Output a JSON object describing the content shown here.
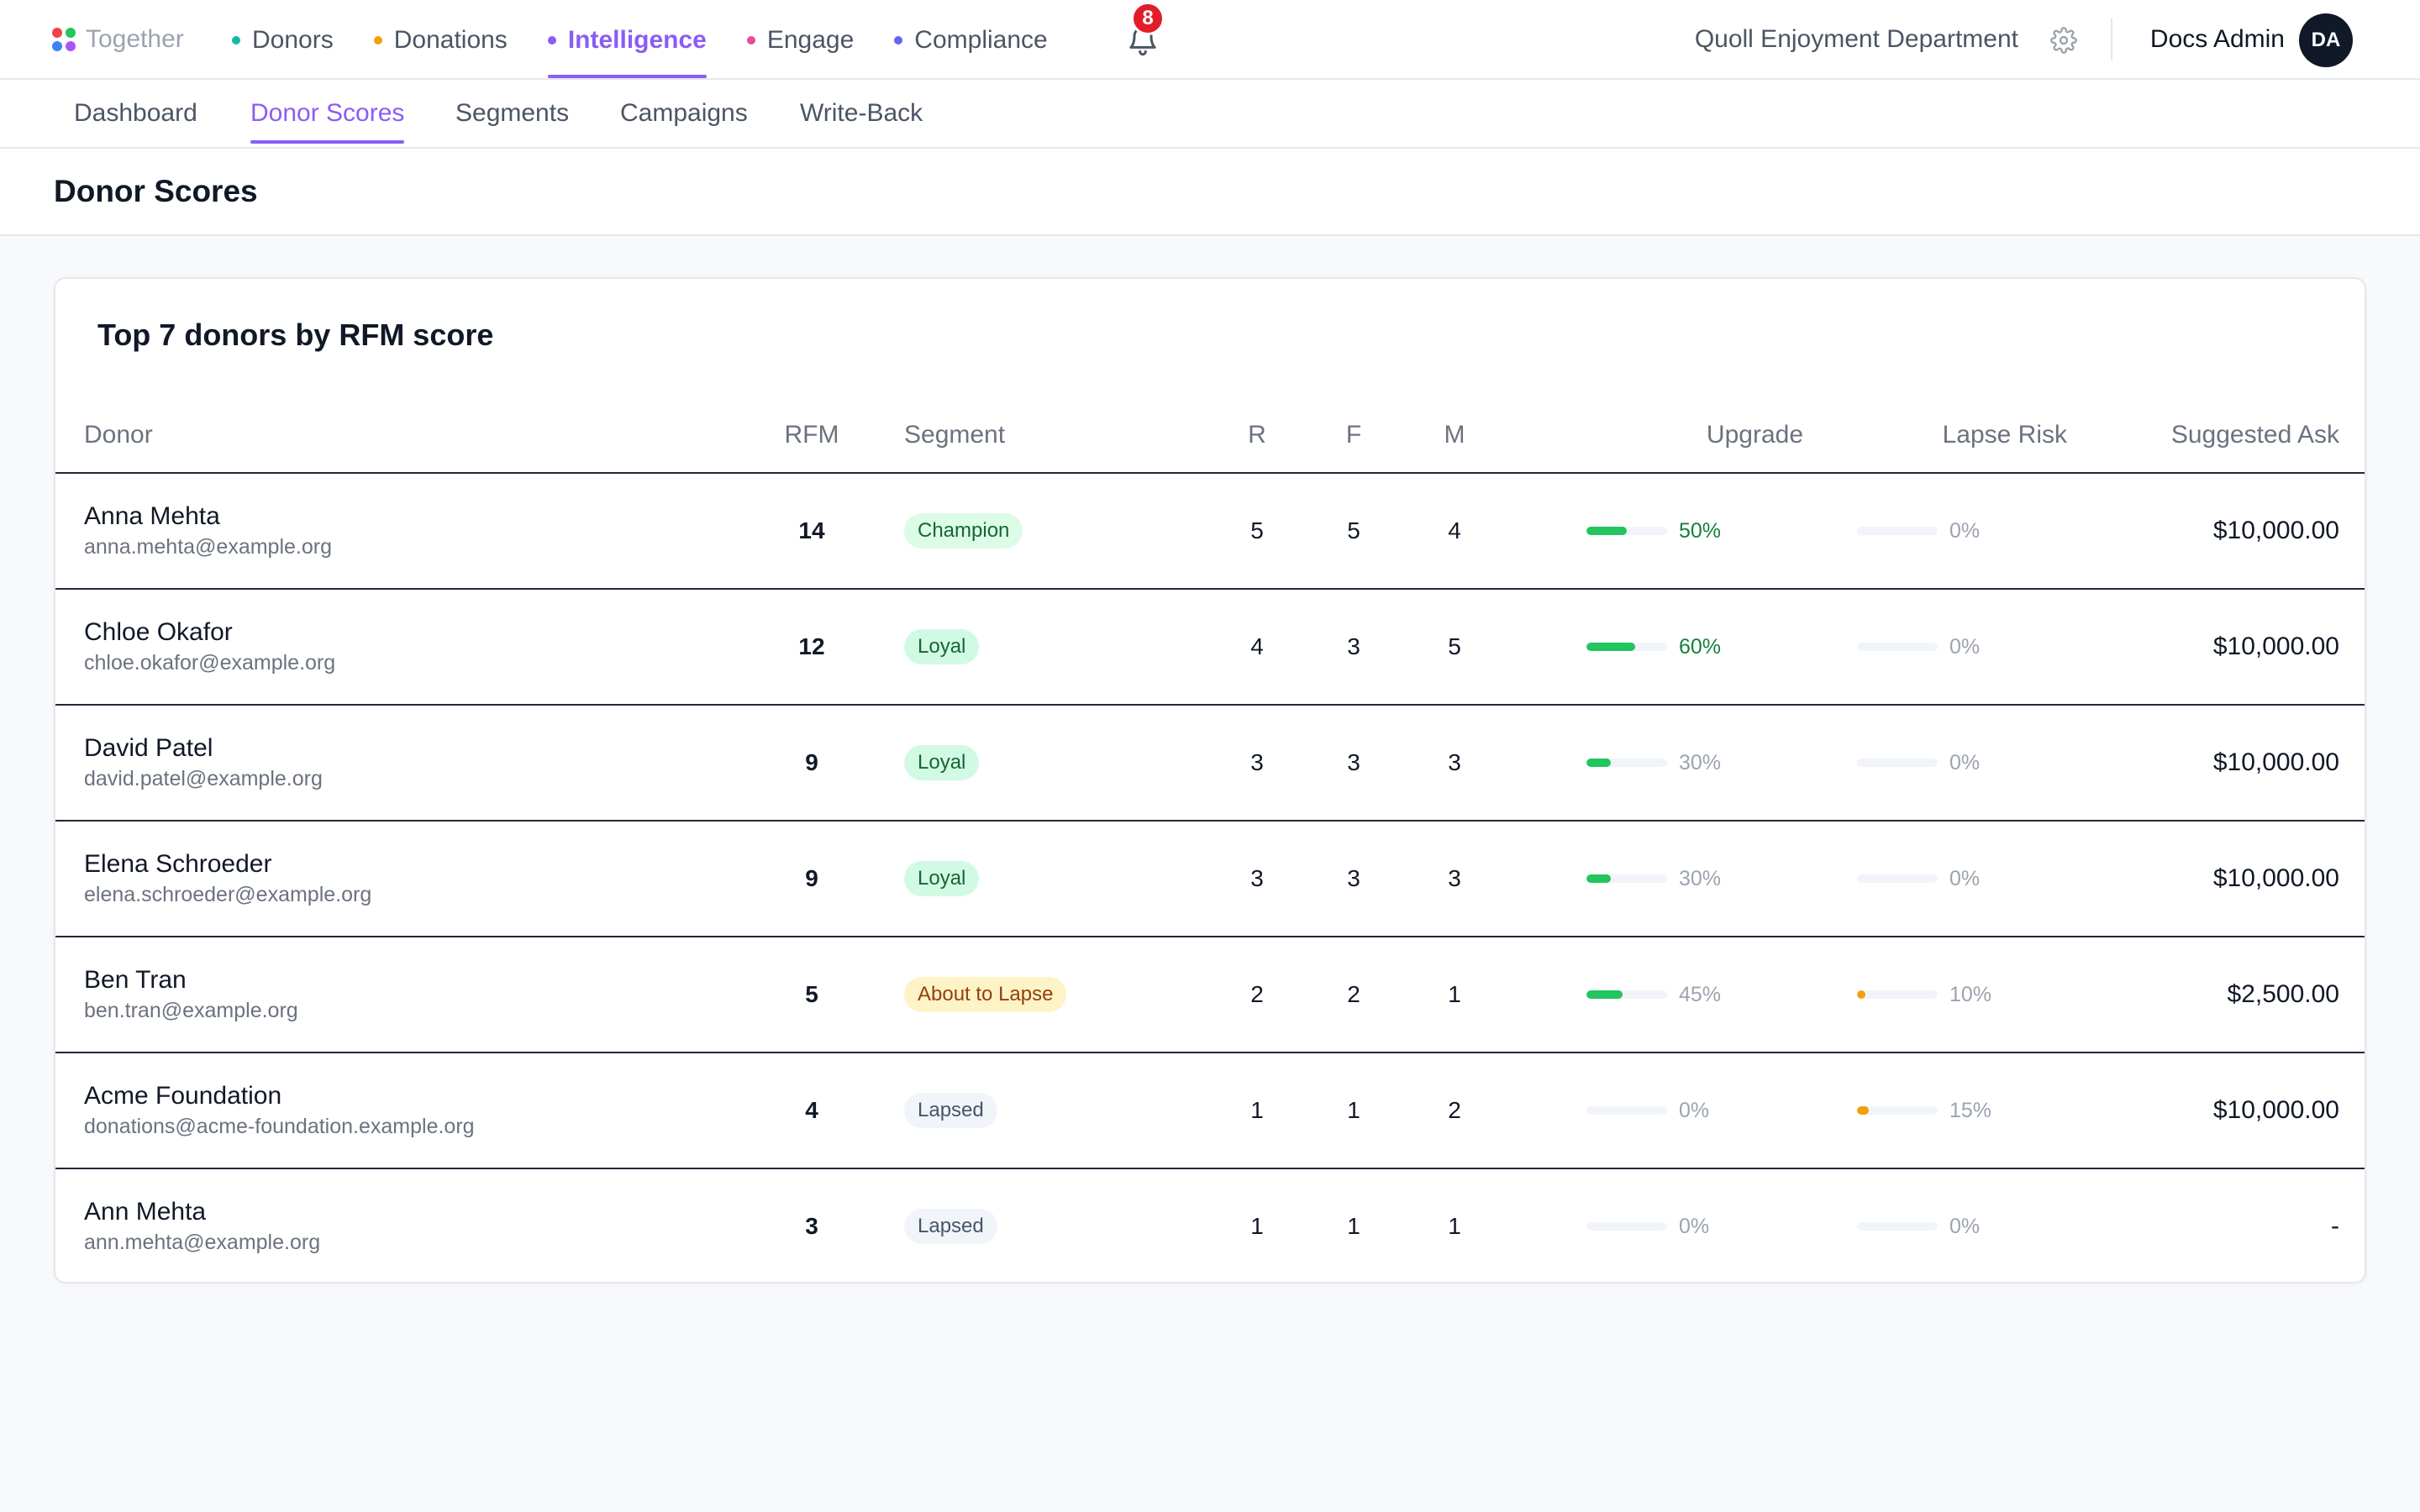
{
  "app": {
    "name": "Together",
    "logo_colors": [
      "#ef4444",
      "#22c55e",
      "#3b82f6",
      "#a855f7"
    ]
  },
  "main_nav": [
    {
      "label": "Donors",
      "dot_color": "#14b8a6",
      "active": false
    },
    {
      "label": "Donations",
      "dot_color": "#f59e0b",
      "active": false
    },
    {
      "label": "Intelligence",
      "dot_color": "#8b5cf6",
      "active": true
    },
    {
      "label": "Engage",
      "dot_color": "#ec4899",
      "active": false
    },
    {
      "label": "Compliance",
      "dot_color": "#6366f1",
      "active": false
    }
  ],
  "notifications": {
    "icon": "bell-icon",
    "count": "8"
  },
  "org_name": "Quoll Enjoyment Department",
  "settings_icon": "gear-icon",
  "user": {
    "name": "Docs Admin",
    "initials": "DA"
  },
  "sub_nav": [
    {
      "label": "Dashboard",
      "active": false
    },
    {
      "label": "Donor Scores",
      "active": true
    },
    {
      "label": "Segments",
      "active": false
    },
    {
      "label": "Campaigns",
      "active": false
    },
    {
      "label": "Write-Back",
      "active": false
    }
  ],
  "page_title": "Donor Scores",
  "card_title": "Top 7 donors by RFM score",
  "table": {
    "columns": {
      "donor": "Donor",
      "rfm": "RFM",
      "segment": "Segment",
      "r": "R",
      "f": "F",
      "m": "M",
      "upgrade": "Upgrade",
      "lapse_risk": "Lapse Risk",
      "suggested_ask": "Suggested Ask"
    },
    "rows": [
      {
        "name": "Anna Mehta",
        "email": "anna.mehta@example.org",
        "rfm": "14",
        "segment": "Champion",
        "segment_style": "champion",
        "r": "5",
        "f": "5",
        "m": "4",
        "upgrade": 50,
        "upgrade_label": "50%",
        "lapse": 0,
        "lapse_label": "0%",
        "ask": "$10,000.00"
      },
      {
        "name": "Chloe Okafor",
        "email": "chloe.okafor@example.org",
        "rfm": "12",
        "segment": "Loyal",
        "segment_style": "loyal",
        "r": "4",
        "f": "3",
        "m": "5",
        "upgrade": 60,
        "upgrade_label": "60%",
        "lapse": 0,
        "lapse_label": "0%",
        "ask": "$10,000.00"
      },
      {
        "name": "David Patel",
        "email": "david.patel@example.org",
        "rfm": "9",
        "segment": "Loyal",
        "segment_style": "loyal",
        "r": "3",
        "f": "3",
        "m": "3",
        "upgrade": 30,
        "upgrade_label": "30%",
        "lapse": 0,
        "lapse_label": "0%",
        "ask": "$10,000.00"
      },
      {
        "name": "Elena Schroeder",
        "email": "elena.schroeder@example.org",
        "rfm": "9",
        "segment": "Loyal",
        "segment_style": "loyal",
        "r": "3",
        "f": "3",
        "m": "3",
        "upgrade": 30,
        "upgrade_label": "30%",
        "lapse": 0,
        "lapse_label": "0%",
        "ask": "$10,000.00"
      },
      {
        "name": "Ben Tran",
        "email": "ben.tran@example.org",
        "rfm": "5",
        "segment": "About to Lapse",
        "segment_style": "warn",
        "r": "2",
        "f": "2",
        "m": "1",
        "upgrade": 45,
        "upgrade_label": "45%",
        "lapse": 10,
        "lapse_label": "10%",
        "ask": "$2,500.00"
      },
      {
        "name": "Acme Foundation",
        "email": "donations@acme-foundation.example.org",
        "rfm": "4",
        "segment": "Lapsed",
        "segment_style": "lapsed",
        "r": "1",
        "f": "1",
        "m": "2",
        "upgrade": 0,
        "upgrade_label": "0%",
        "lapse": 15,
        "lapse_label": "15%",
        "ask": "$10,000.00"
      },
      {
        "name": "Ann Mehta",
        "email": "ann.mehta@example.org",
        "rfm": "3",
        "segment": "Lapsed",
        "segment_style": "lapsed",
        "r": "1",
        "f": "1",
        "m": "1",
        "upgrade": 0,
        "upgrade_label": "0%",
        "lapse": 0,
        "lapse_label": "0%",
        "ask": "-"
      }
    ]
  },
  "colors": {
    "accent": "#8b5cf6",
    "upgrade_bar": "#22c55e",
    "lapse_bar": "#f59e0b"
  }
}
